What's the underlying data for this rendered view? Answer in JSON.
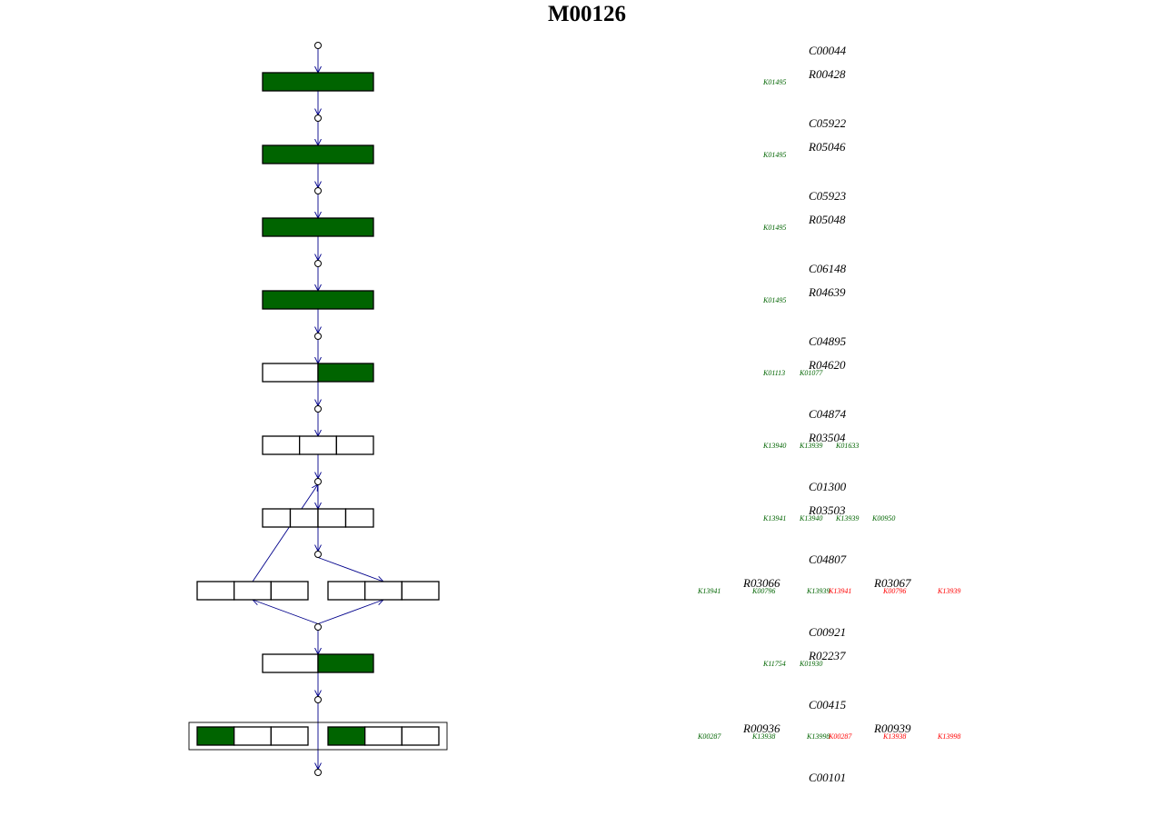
{
  "title": "M00126",
  "colors": {
    "present": "#006400",
    "absent": "#ffffff",
    "edge": "#00008b",
    "ko_green": "#006400",
    "ko_red": "#ff0000"
  },
  "nodes": [
    {
      "compound": "C00044"
    },
    {
      "compound": "C05922"
    },
    {
      "compound": "C05923"
    },
    {
      "compound": "C06148"
    },
    {
      "compound": "C04895"
    },
    {
      "compound": "C04874"
    },
    {
      "compound": "C01300"
    },
    {
      "compound": "C04807"
    },
    {
      "compound": "C00921"
    },
    {
      "compound": "C00415"
    },
    {
      "compound": "C00101"
    }
  ],
  "steps": [
    {
      "reactions": [
        {
          "id": "R00428",
          "cells": [
            {
              "present": true
            }
          ],
          "kos": [
            {
              "id": "K01495",
              "color": "green"
            }
          ]
        }
      ]
    },
    {
      "reactions": [
        {
          "id": "R05046",
          "cells": [
            {
              "present": true
            }
          ],
          "kos": [
            {
              "id": "K01495",
              "color": "green"
            }
          ]
        }
      ]
    },
    {
      "reactions": [
        {
          "id": "R05048",
          "cells": [
            {
              "present": true
            }
          ],
          "kos": [
            {
              "id": "K01495",
              "color": "green"
            }
          ]
        }
      ]
    },
    {
      "reactions": [
        {
          "id": "R04639",
          "cells": [
            {
              "present": true
            }
          ],
          "kos": [
            {
              "id": "K01495",
              "color": "green"
            }
          ]
        }
      ]
    },
    {
      "reactions": [
        {
          "id": "R04620",
          "cells": [
            {
              "present": false
            },
            {
              "present": true
            }
          ],
          "kos": [
            {
              "id": "K01113",
              "color": "green"
            },
            {
              "id": "K01077",
              "color": "green"
            }
          ]
        }
      ]
    },
    {
      "reactions": [
        {
          "id": "R03504",
          "cells": [
            {
              "present": false
            },
            {
              "present": false
            },
            {
              "present": false
            }
          ],
          "kos": [
            {
              "id": "K13940",
              "color": "green"
            },
            {
              "id": "K13939",
              "color": "green"
            },
            {
              "id": "K01633",
              "color": "green"
            }
          ]
        }
      ]
    },
    {
      "reactions": [
        {
          "id": "R03503",
          "cells": [
            {
              "present": false
            },
            {
              "present": false
            },
            {
              "present": false
            },
            {
              "present": false
            }
          ],
          "kos": [
            {
              "id": "K13941",
              "color": "green"
            },
            {
              "id": "K13940",
              "color": "green"
            },
            {
              "id": "K13939",
              "color": "green"
            },
            {
              "id": "K00950",
              "color": "green"
            }
          ]
        }
      ]
    },
    {
      "reactions": [
        {
          "id": "R03066",
          "cells": [
            {
              "present": false
            },
            {
              "present": false
            },
            {
              "present": false
            }
          ],
          "kos": [
            {
              "id": "K13941",
              "color": "green"
            },
            {
              "id": "K00796",
              "color": "green"
            },
            {
              "id": "K13939",
              "color": "green"
            }
          ]
        },
        {
          "id": "R03067",
          "cells": [
            {
              "present": false
            },
            {
              "present": false
            },
            {
              "present": false
            }
          ],
          "kos": [
            {
              "id": "K13941",
              "color": "red"
            },
            {
              "id": "K00796",
              "color": "red"
            },
            {
              "id": "K13939",
              "color": "red"
            }
          ]
        }
      ]
    },
    {
      "reactions": [
        {
          "id": "R02237",
          "cells": [
            {
              "present": false
            },
            {
              "present": true
            }
          ],
          "kos": [
            {
              "id": "K11754",
              "color": "green"
            },
            {
              "id": "K01930",
              "color": "green"
            }
          ]
        }
      ]
    },
    {
      "reactions": [
        {
          "id": "R00936",
          "cells": [
            {
              "present": true
            },
            {
              "present": false
            },
            {
              "present": false
            }
          ],
          "kos": [
            {
              "id": "K00287",
              "color": "green"
            },
            {
              "id": "K13938",
              "color": "green"
            },
            {
              "id": "K13998",
              "color": "green"
            }
          ]
        },
        {
          "id": "R00939",
          "cells": [
            {
              "present": true
            },
            {
              "present": false
            },
            {
              "present": false
            }
          ],
          "kos": [
            {
              "id": "K00287",
              "color": "red"
            },
            {
              "id": "K13938",
              "color": "red"
            },
            {
              "id": "K13998",
              "color": "red"
            }
          ]
        }
      ]
    }
  ]
}
